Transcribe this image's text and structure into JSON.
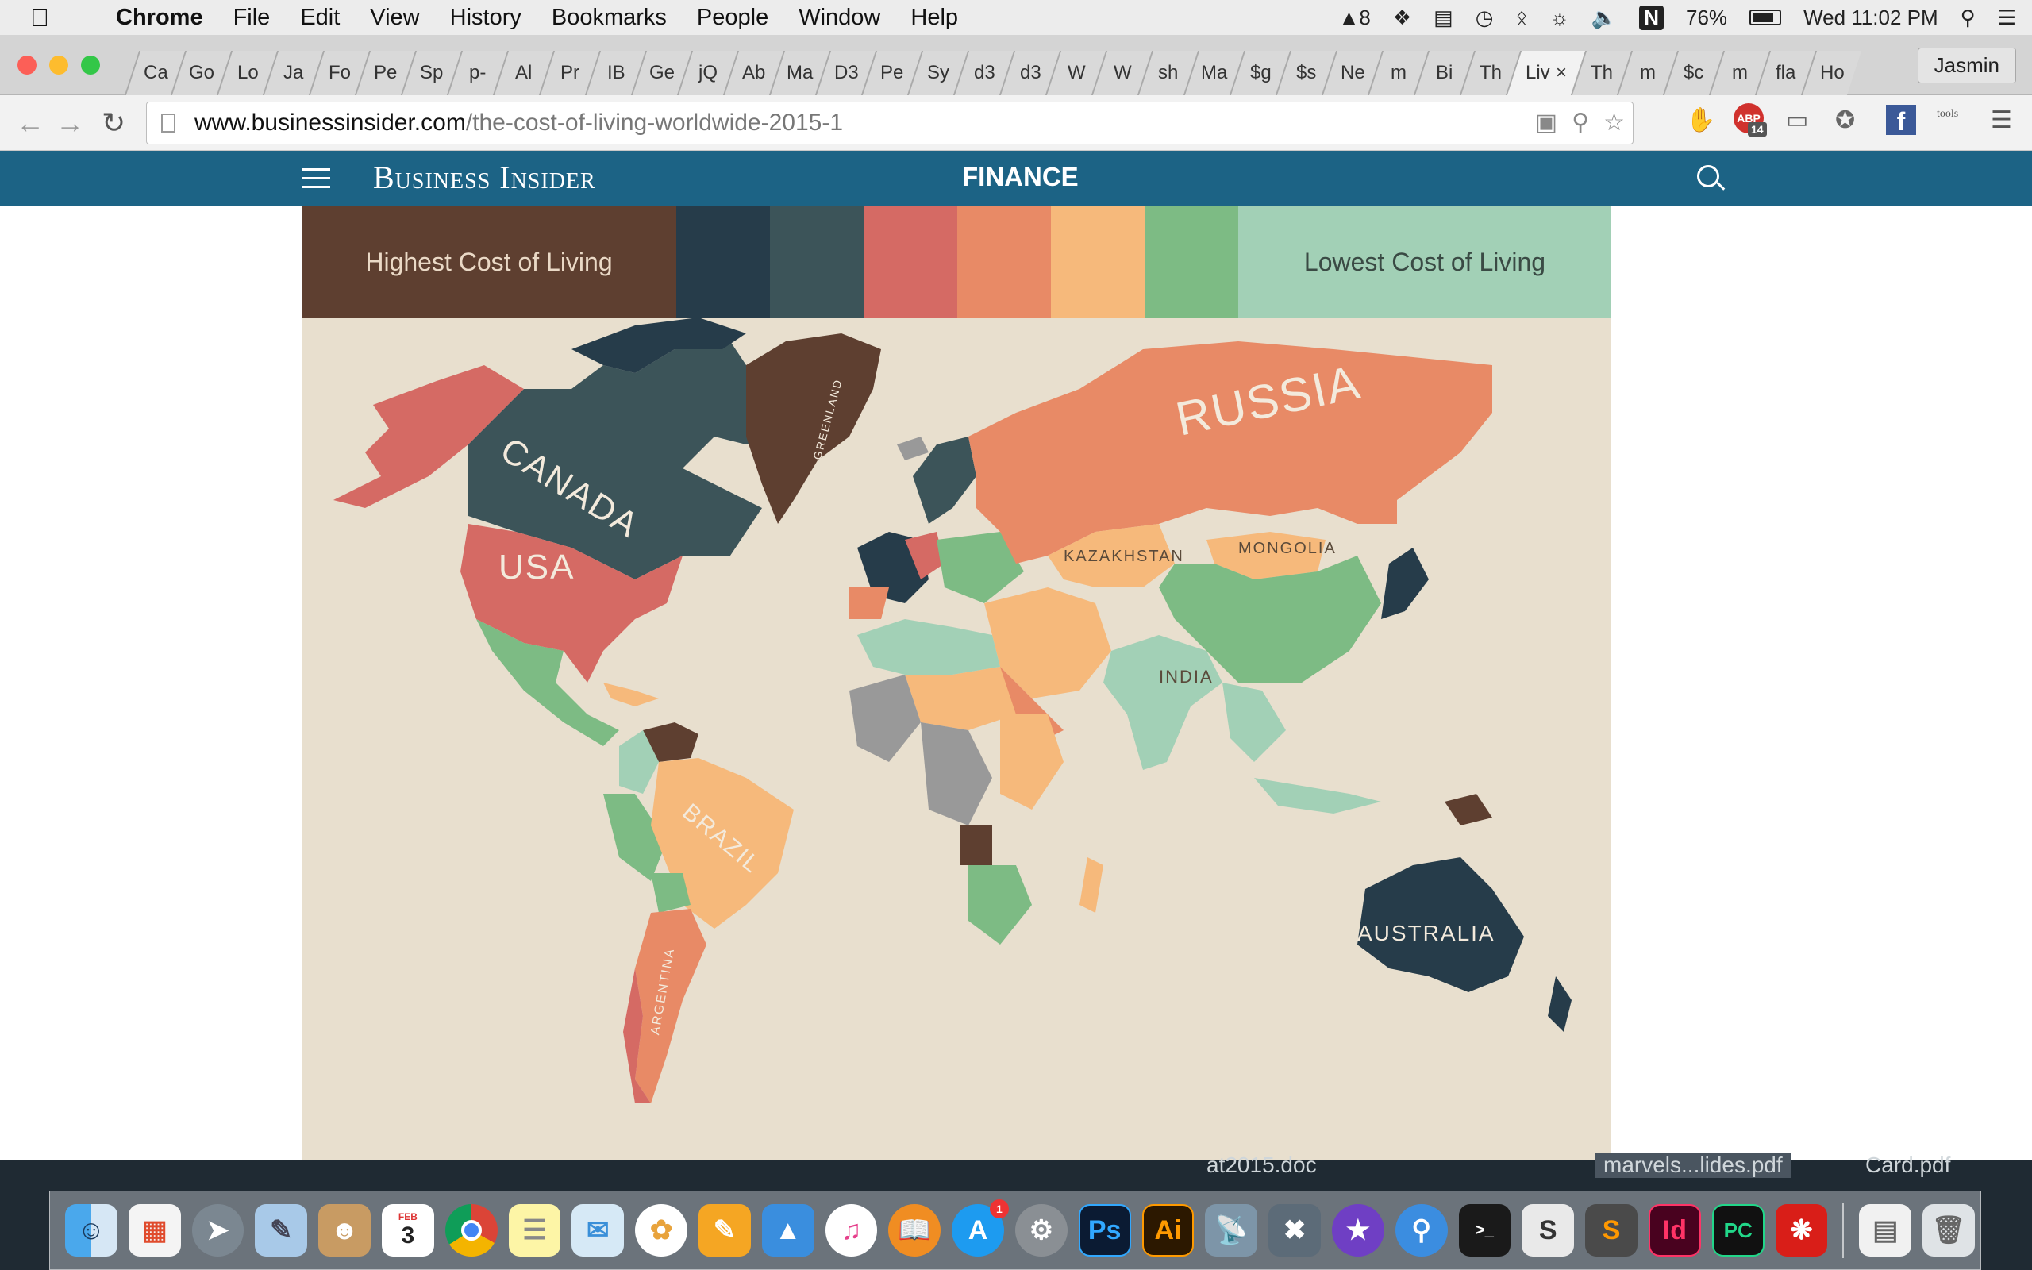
{
  "menubar": {
    "app": "Chrome",
    "items": [
      "File",
      "Edit",
      "View",
      "History",
      "Bookmarks",
      "People",
      "Window",
      "Help"
    ],
    "adobe_count": "8",
    "battery": "76%",
    "clock": "Wed 11:02 PM"
  },
  "tabs": [
    "Ca",
    "Go",
    "Lo",
    "Ja",
    "Fo",
    "Pe",
    "Sp",
    "p-",
    "Al",
    "Pr",
    "IB",
    "Ge",
    "jQ",
    "Ab",
    "Ma",
    "D3",
    "Pe",
    "Sy",
    "d3",
    "d3",
    "W",
    "W",
    "sh",
    "Ma",
    "$g",
    "$s",
    "Ne",
    "m",
    "Bi",
    "Th",
    "Liv",
    "Th",
    "m",
    "$c",
    "m",
    "fla",
    "Ho"
  ],
  "active_tab_close": "×",
  "profile": "Jasmin",
  "address": {
    "host": "www.businessinsider.com",
    "path": "/the-cost-of-living-worldwide-2015-1"
  },
  "extensions": {
    "abp_count": "14",
    "abp_label": "ABP",
    "coschedule_label": "tools"
  },
  "site": {
    "logo": "Business Insider",
    "section": "FINANCE"
  },
  "legend": {
    "high_label": "Highest Cost of Living",
    "low_label": "Lowest Cost of Living",
    "colors": [
      "#5e3f30",
      "#263c4a",
      "#3c5459",
      "#d56a64",
      "#e88a66",
      "#f6b97b",
      "#7dbb84",
      "#a2d0b6"
    ]
  },
  "map_labels": {
    "canada": "CANADA",
    "usa": "USA",
    "greenland": "GREENLAND",
    "russia": "RUSSIA",
    "kazakhstan": "KAZAKHSTAN",
    "mongolia": "MONGOLIA",
    "india": "INDIA",
    "brazil": "BRAZIL",
    "argentina": "ARGENTINA",
    "australia": "AUSTRALIA"
  },
  "desktop_files": [
    "at2015.doc",
    "marvels...lides.pdf",
    "Card.pdf"
  ],
  "dock": {
    "calendar_month": "FEB",
    "calendar_day": "3",
    "appstore_badge": "1",
    "apps": [
      "Finder",
      "Launchpad",
      "Rocket",
      "Preview",
      "Contacts",
      "Calendar",
      "Chrome",
      "Notes",
      "Messages",
      "Photos",
      "Pages",
      "Keynote",
      "iTunes",
      "iBooks",
      "App Store",
      "System Preferences",
      "Photoshop",
      "Illustrator",
      "Network",
      "Utilities",
      "iMovie",
      "Spotlight",
      "Terminal",
      "Sublime",
      "Sublime Text",
      "InDesign",
      "PyCharm",
      "Acrobat",
      "Documents",
      "Trash"
    ],
    "ps": "Ps",
    "ai": "Ai",
    "id": "Id",
    "pc": "PC",
    "s": "S"
  }
}
